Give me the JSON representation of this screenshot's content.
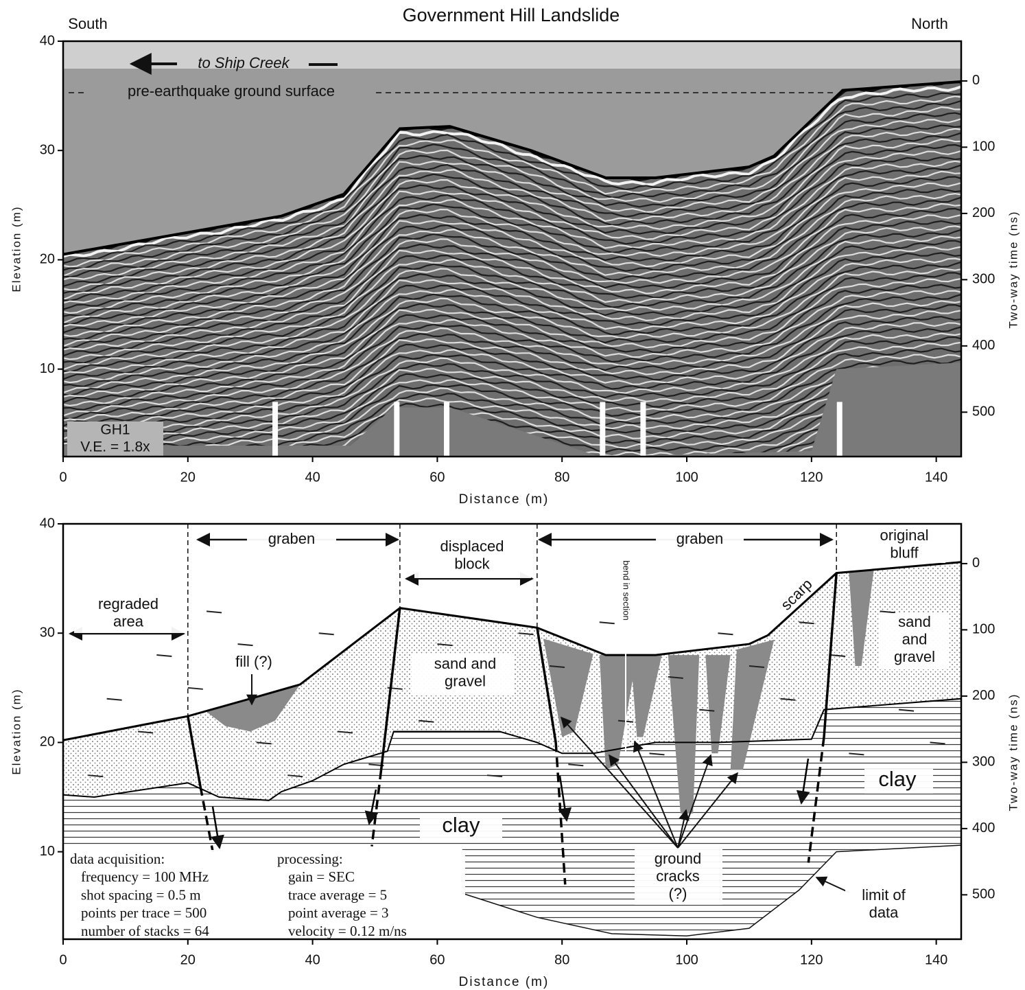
{
  "title": "Government Hill Landslide",
  "left_label": "South",
  "right_label": "North",
  "panels": [
    {
      "xlabel": "Distance (m)",
      "ylabel": "Elevation (m)",
      "y2label": "Two-way time (ns)",
      "xlim": [
        0,
        144
      ],
      "ylim": [
        2,
        40
      ],
      "y2lim": [
        -60,
        567
      ],
      "xticks": [
        0,
        20,
        40,
        60,
        80,
        100,
        120,
        140
      ],
      "yticks": [
        10,
        20,
        30,
        40
      ],
      "y2ticks": [
        0,
        100,
        200,
        300,
        400,
        500
      ],
      "annotations": {
        "ship_creek": "to Ship Creek",
        "surface": "pre-earthquake ground surface",
        "profile": "GH1",
        "ve": "V.E. = 1.8x"
      }
    },
    {
      "xlabel": "Distance (m)",
      "ylabel": "Elevation (m)",
      "y2label": "Two-way time (ns)",
      "xlim": [
        0,
        144
      ],
      "ylim": [
        2,
        40
      ],
      "y2lim": [
        -60,
        567
      ],
      "xticks": [
        0,
        20,
        40,
        60,
        80,
        100,
        120,
        140
      ],
      "yticks": [
        10,
        20,
        30,
        40
      ],
      "y2ticks": [
        0,
        100,
        200,
        300,
        400,
        500
      ],
      "annotations": {
        "graben_left": "graben",
        "displaced_block": [
          "displaced",
          "block"
        ],
        "graben_right": "graben",
        "original_bluff": [
          "original",
          "bluff"
        ],
        "regraded_area": [
          "regraded",
          "area"
        ],
        "bend": "bend in section",
        "scarp": "scarp",
        "fill": "fill (?)",
        "sand_gravel_mid": [
          "sand and",
          "gravel"
        ],
        "sand_gravel_right": [
          "sand",
          "and",
          "gravel"
        ],
        "clay_mid": "clay",
        "clay_right": "clay",
        "ground_cracks": [
          "ground",
          "cracks",
          "(?)"
        ],
        "limit": [
          "limit of",
          "data"
        ],
        "acquisition": [
          "data acquisition:",
          "frequency = 100 MHz",
          "shot spacing = 0.5 m",
          "points per trace = 500",
          "number of stacks = 64"
        ],
        "processing": [
          "processing:",
          "gain = SEC",
          "trace average = 5",
          "point average = 3",
          "velocity = 0.12 m/ns"
        ]
      }
    }
  ]
}
